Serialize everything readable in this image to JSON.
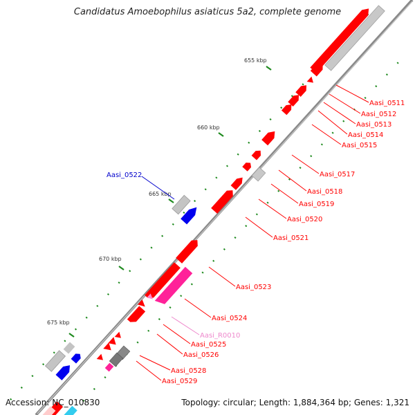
{
  "title": "Candidatus Amoebophilus asiaticus 5a2, complete genome",
  "accession": "Accession: NC_010830",
  "topology": "Topology: circular; Length: 1,884,364 bp; Genes: 1,321",
  "scale_ticks": [
    "655 kbp",
    "660 kbp",
    "665 kbp",
    "670 kbp",
    "675 kbp"
  ],
  "colors": {
    "cds": "#ff0000",
    "pseudo": "#c0c0c0",
    "blue": "#0000ff",
    "ncrna": "#ff33aa",
    "label_red": "#ff0000",
    "label_blue": "#0000cc",
    "label_pink": "#ee88cc",
    "backbone": "#8a8a8a",
    "tick": "#228b22"
  },
  "gene_labels": [
    {
      "name": "Aasi_0511",
      "color": "red"
    },
    {
      "name": "Aasi_0512",
      "color": "red"
    },
    {
      "name": "Aasi_0513",
      "color": "red"
    },
    {
      "name": "Aasi_0514",
      "color": "red"
    },
    {
      "name": "Aasi_0515",
      "color": "red"
    },
    {
      "name": "Aasi_0517",
      "color": "red"
    },
    {
      "name": "Aasi_0518",
      "color": "red"
    },
    {
      "name": "Aasi_0519",
      "color": "red"
    },
    {
      "name": "Aasi_0520",
      "color": "red"
    },
    {
      "name": "Aasi_0521",
      "color": "red"
    },
    {
      "name": "Aasi_0522",
      "color": "blue"
    },
    {
      "name": "Aasi_0523",
      "color": "red"
    },
    {
      "name": "Aasi_0524",
      "color": "red"
    },
    {
      "name": "Aasi_R0010",
      "color": "pink"
    },
    {
      "name": "Aasi_0525",
      "color": "red"
    },
    {
      "name": "Aasi_0526",
      "color": "red"
    },
    {
      "name": "Aasi_0528",
      "color": "red"
    },
    {
      "name": "Aasi_0529",
      "color": "red"
    }
  ]
}
